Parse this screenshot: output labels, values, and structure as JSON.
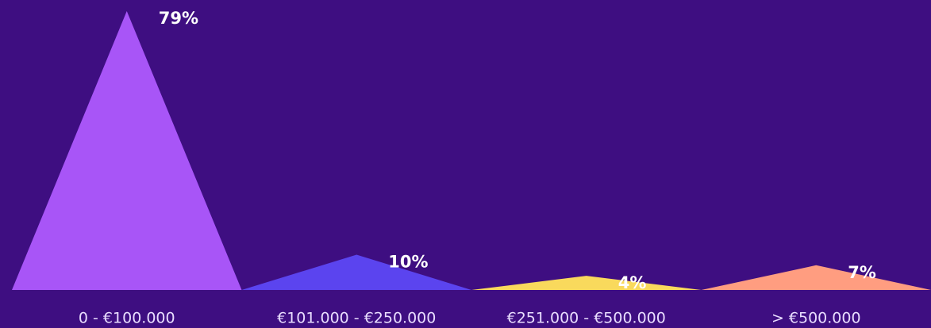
{
  "chart_data": {
    "type": "triangle-bar",
    "categories": [
      "0 - €100.000",
      "€101.000 - €250.000",
      "€251.000 - €500.000",
      "> €500.000"
    ],
    "values": [
      79,
      10,
      4,
      7
    ],
    "value_labels": [
      "79%",
      "10%",
      "4%",
      "7%"
    ],
    "colors": [
      "#a855f7",
      "#5b44ef",
      "#f9d95c",
      "#ff9d80"
    ]
  }
}
